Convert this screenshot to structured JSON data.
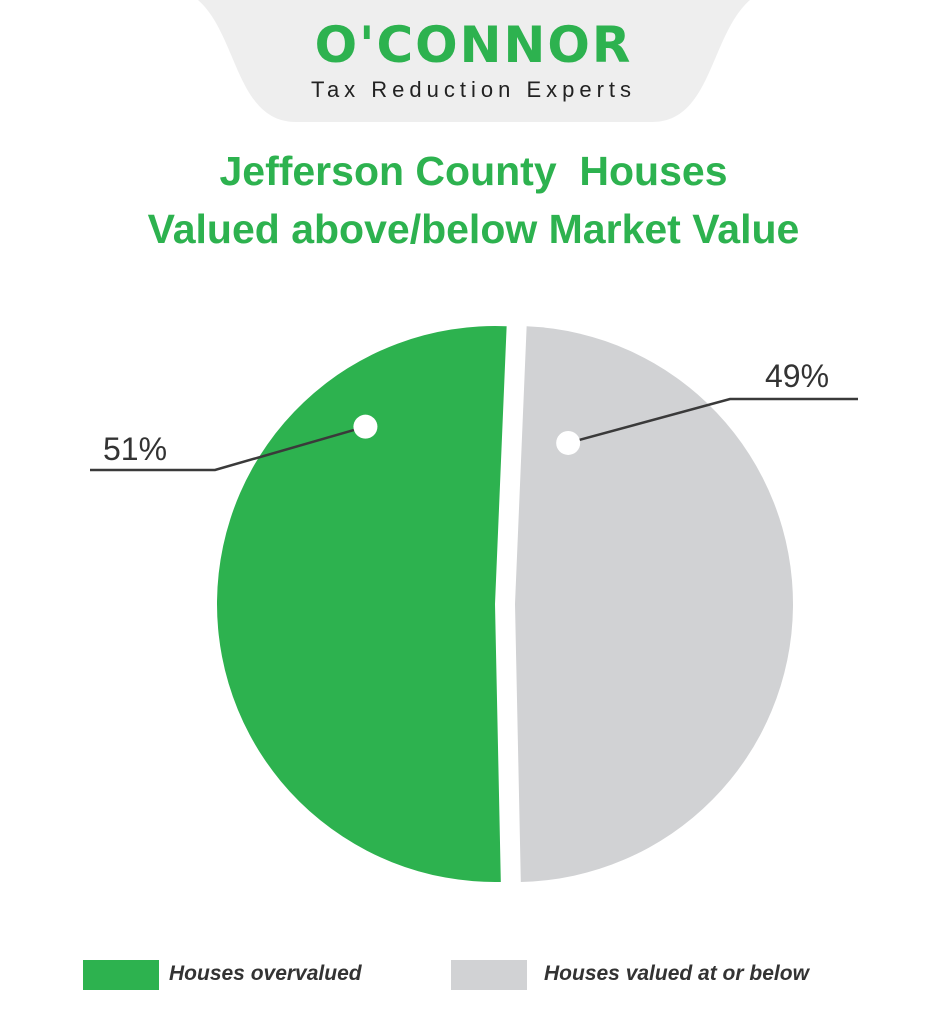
{
  "brand": {
    "name": "O'CONNOR",
    "tagline": "Tax Reduction Experts"
  },
  "colors": {
    "brand_green": "#2db24f",
    "slice_gray": "#d1d2d4",
    "tab_background": "#eeeeee",
    "leader_line": "#3a3a3a"
  },
  "chart_data": {
    "type": "pie",
    "title": "Jefferson County  Houses\nValued above/below Market Value",
    "slices": [
      {
        "label": "Houses overvalued",
        "value": 51,
        "display": "51%",
        "color": "#2db24f"
      },
      {
        "label": "Houses valued at or below",
        "value": 49,
        "display": "49%",
        "color": "#d1d2d4"
      }
    ],
    "legend_position": "bottom"
  }
}
